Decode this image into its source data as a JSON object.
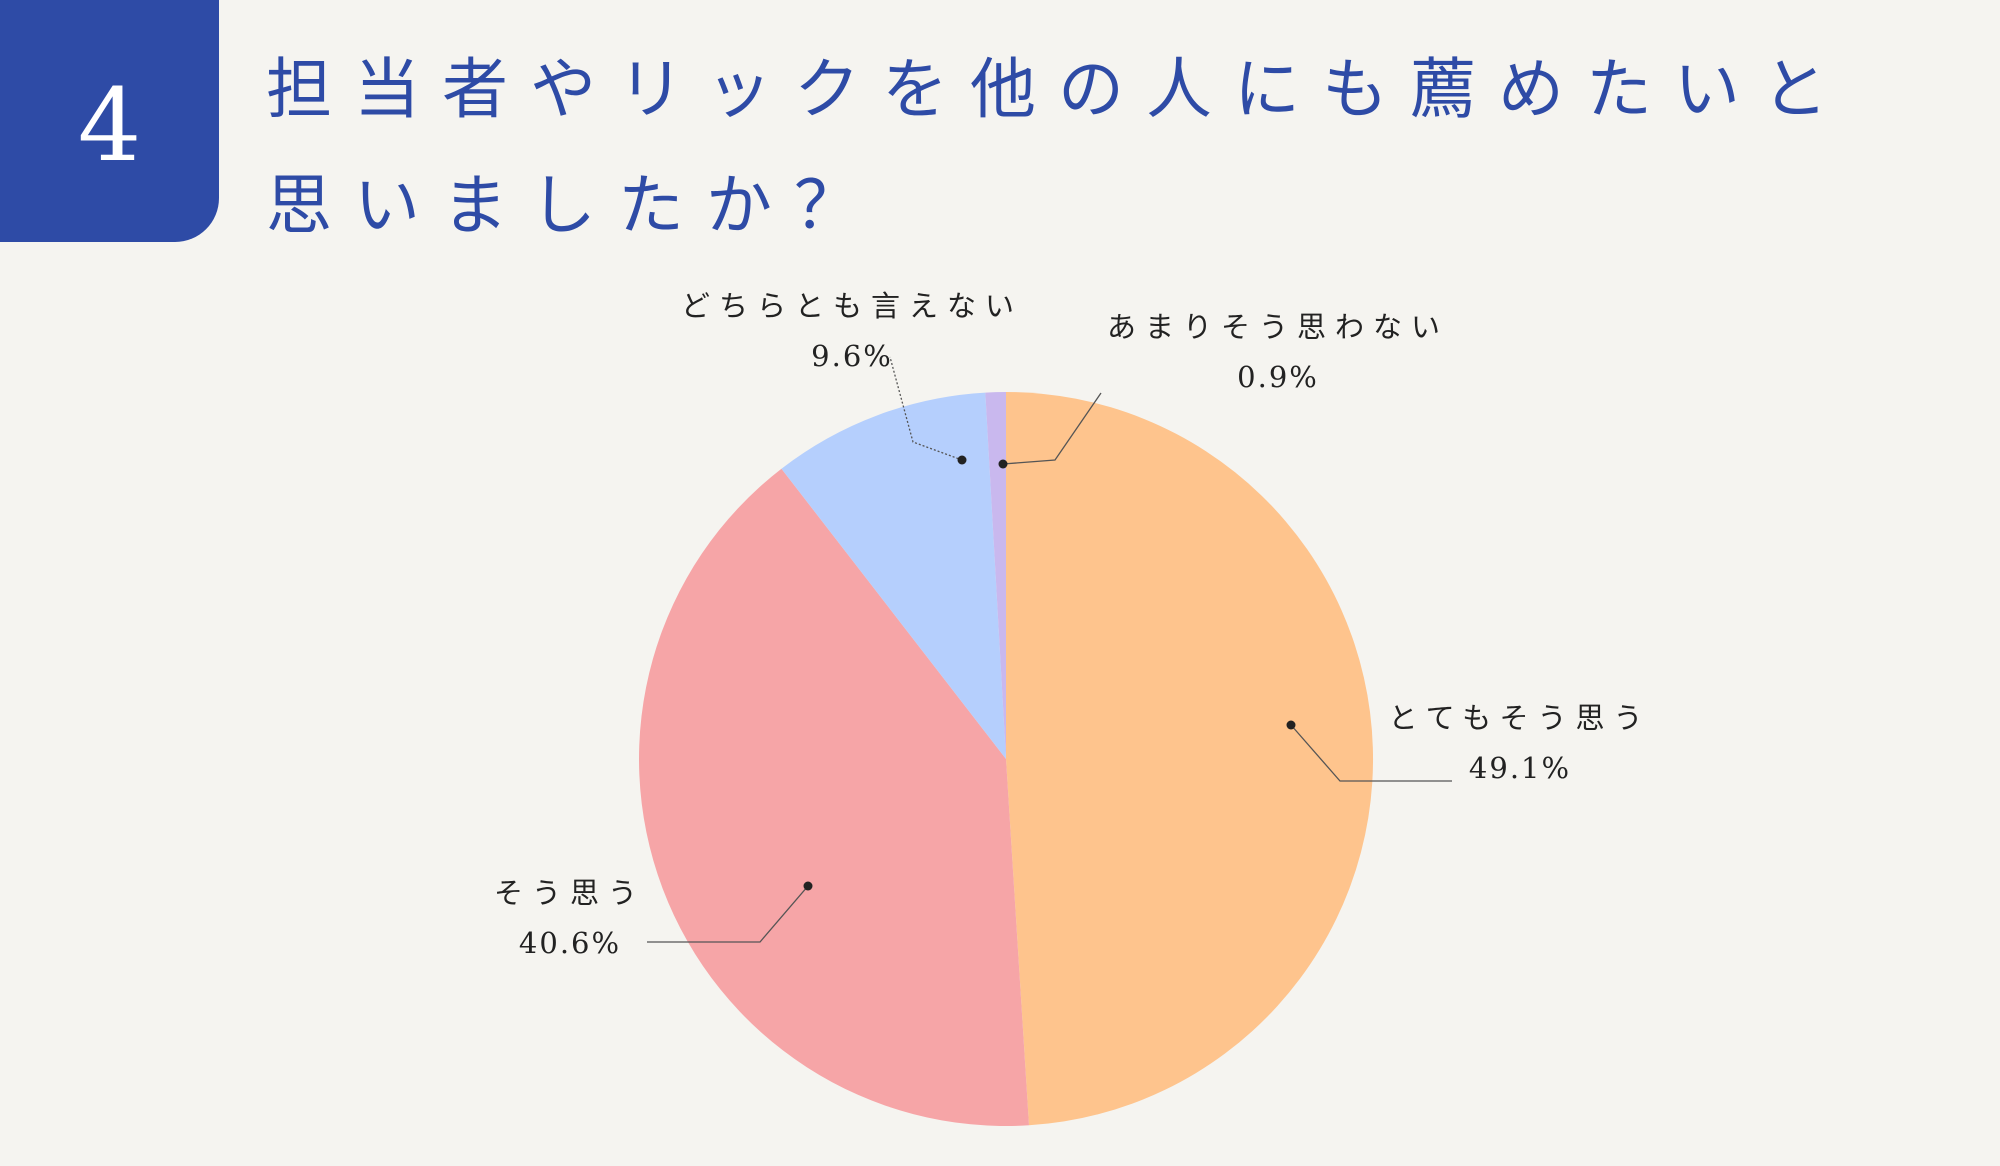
{
  "question": {
    "number": "4",
    "title_line1": "担当者やリックを他の人にも薦めたいと",
    "title_line2": "思いましたか？"
  },
  "chart_data": {
    "type": "pie",
    "title": "担当者やリックを他の人にも薦めたいと思いましたか？",
    "start_angle_deg": 0,
    "direction": "clockwise",
    "slices": [
      {
        "label": "とてもそう思う",
        "value": 49.1,
        "display": "49.1%",
        "color": "#fec48d"
      },
      {
        "label": "そう思う",
        "value": 40.6,
        "display": "40.6%",
        "color": "#f6a5a7"
      },
      {
        "label": "どちらとも言えない",
        "value": 9.6,
        "display": "9.6%",
        "color": "#b5cffd"
      },
      {
        "label": "あまりそう思わない",
        "value": 0.9,
        "display": "0.9%",
        "color": "#c9b8ee"
      }
    ]
  }
}
